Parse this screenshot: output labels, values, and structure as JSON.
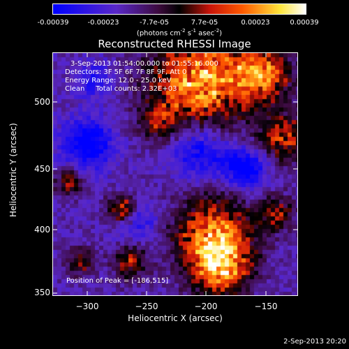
{
  "colorbar": {
    "tick_labels": [
      "-0.00039",
      "-0.00023",
      "-7.7e-05",
      "7.7e-05",
      "0.00023",
      "0.00039"
    ],
    "units_prefix": "(photons cm",
    "units_exp1": "-2",
    "units_mid": " s",
    "units_exp2": "-1",
    "units_mid2": " asec",
    "units_exp3": "-2",
    "units_suffix": ")"
  },
  "title": "Reconstructed RHESSI Image",
  "info": {
    "time_range": "3-Sep-2013 01:54:00.000 to 01:55:16.000",
    "detectors": "Detectors: 3F 5F 6F 7F 8F 9F, Att 0",
    "energy": "Energy Range: 12.0 - 25.0 keV",
    "clean": "Clean     Total counts: 2.32E+03",
    "peak": "Position of Peak = [-186,515]"
  },
  "axes": {
    "xlabel": "Heliocentric X (arcsec)",
    "ylabel": "Heliocentric Y (arcsec)",
    "xticks": [
      "−300",
      "−250",
      "−200",
      "−150"
    ],
    "yticks": [
      "500",
      "450",
      "400",
      "350"
    ]
  },
  "timestamp": "2-Sep-2013 20:20"
}
